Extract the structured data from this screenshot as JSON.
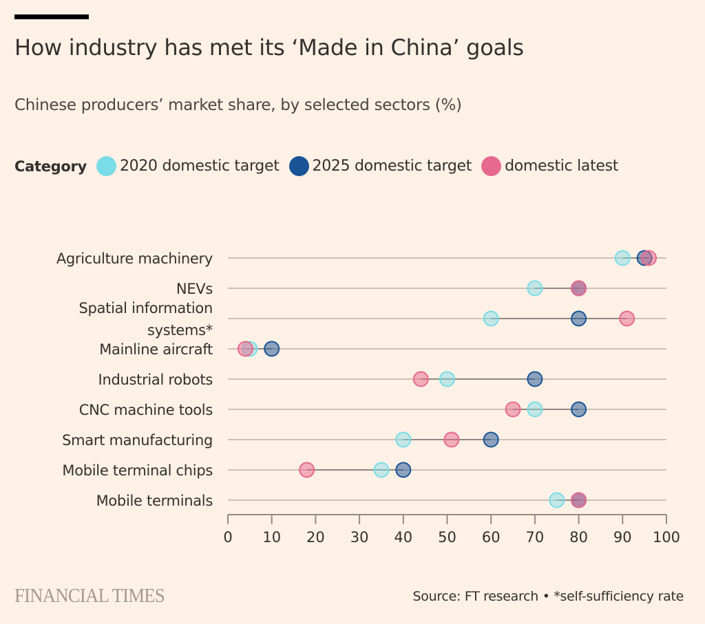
{
  "header": {
    "title": "How industry has met its ‘Made in China’ goals",
    "subtitle": "Chinese producers’ market share, by selected sectors (%)"
  },
  "legend": {
    "title": "Category",
    "items": [
      {
        "label": "2020 domestic target",
        "color": "#7adce6"
      },
      {
        "label": "2025 domestic target",
        "color": "#1a5396"
      },
      {
        "label": "domestic latest",
        "color": "#e8698f"
      }
    ]
  },
  "footer": {
    "logo": "FINANCIAL TIMES",
    "source": "Source: FT research • *self-sufficiency rate"
  },
  "chart_data": {
    "type": "scatter",
    "subtype": "dot-plot",
    "title": "How industry has met its ‘Made in China’ goals",
    "subtitle": "Chinese producers’ market share, by selected sectors (%)",
    "xlabel": "",
    "ylabel": "",
    "xlim": [
      0,
      100
    ],
    "xticks": [
      0,
      10,
      20,
      30,
      40,
      50,
      60,
      70,
      80,
      90,
      100
    ],
    "grid": "horizontal row lines",
    "legend_position": "top-left",
    "categories": [
      [
        "Agriculture machinery"
      ],
      [
        "NEVs"
      ],
      [
        "Spatial information",
        "systems*"
      ],
      [
        "Mainline aircraft"
      ],
      [
        "Industrial robots"
      ],
      [
        "CNC machine tools"
      ],
      [
        "Smart manufacturing"
      ],
      [
        "Mobile terminal chips"
      ],
      [
        "Mobile terminals"
      ]
    ],
    "series": [
      {
        "name": "2020 domestic target",
        "color": "#7adce6",
        "values": [
          90,
          70,
          60,
          5,
          50,
          70,
          40,
          35,
          75
        ]
      },
      {
        "name": "2025 domestic target",
        "color": "#1a5396",
        "values": [
          95,
          80,
          80,
          10,
          70,
          80,
          60,
          40,
          80
        ]
      },
      {
        "name": "domestic latest",
        "color": "#e8698f",
        "values": [
          96,
          80,
          91,
          4,
          44,
          65,
          51,
          18,
          80
        ]
      }
    ]
  }
}
